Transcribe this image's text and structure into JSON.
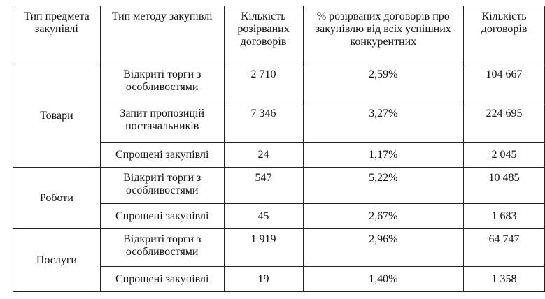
{
  "headers": [
    "Тип предмета закупівлі",
    "Тип методу закупівлі",
    "Кількість розірваних договорів",
    "% розірваних договорів про закупівлю від всіх успішних конкурентних",
    "Кількість договорів"
  ],
  "groups": [
    {
      "name": "Товари",
      "rows": [
        {
          "method": "Відкриті торги з особливостями",
          "terminated": "2 710",
          "percent": "2,59%",
          "total": "104 667"
        },
        {
          "method": "Запит пропозицій постачальників",
          "terminated": "7 346",
          "percent": "3,27%",
          "total": "224 695"
        },
        {
          "method": "Спрощені закупівлі",
          "terminated": "24",
          "percent": "1,17%",
          "total": "2 045"
        }
      ]
    },
    {
      "name": "Роботи",
      "rows": [
        {
          "method": "Відкриті торги з особливостями",
          "terminated": "547",
          "percent": "5,22%",
          "total": "10 485"
        },
        {
          "method": "Спрощені закупівлі",
          "terminated": "45",
          "percent": "2,67%",
          "total": "1 683"
        }
      ]
    },
    {
      "name": "Послуги",
      "rows": [
        {
          "method": "Відкриті торги з особливостями",
          "terminated": "1 919",
          "percent": "2,96%",
          "total": "64 747"
        },
        {
          "method": "Спрощені закупівлі",
          "terminated": "19",
          "percent": "1,40%",
          "total": "1 358"
        }
      ]
    }
  ]
}
